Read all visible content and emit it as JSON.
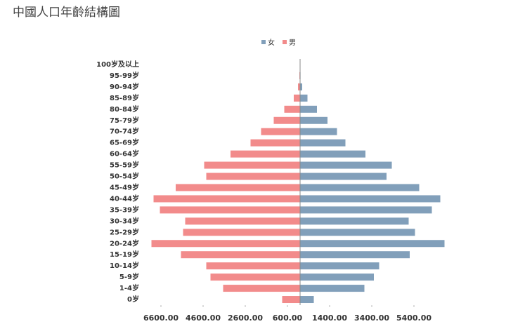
{
  "chart_data": {
    "type": "bar",
    "orientation": "horizontal",
    "title": "中國人口年齡結構圖",
    "categories": [
      "0岁",
      "1-4岁",
      "5-9岁",
      "10-14岁",
      "15-19岁",
      "20-24岁",
      "25-29岁",
      "30-34岁",
      "35-39岁",
      "40-44岁",
      "45-49岁",
      "50-54岁",
      "55-59岁",
      "60-64岁",
      "65-69岁",
      "70-74岁",
      "75-79岁",
      "80-84岁",
      "85-89岁",
      "90-94岁",
      "95-99岁",
      "100岁及以上"
    ],
    "series": [
      {
        "name": "女",
        "color": "#819fba",
        "values": [
          650,
          3050,
          3500,
          3750,
          5200,
          6850,
          5450,
          5150,
          6250,
          6650,
          5650,
          4100,
          4350,
          3100,
          2150,
          1750,
          1300,
          800,
          350,
          100,
          20,
          3
        ]
      },
      {
        "name": "男",
        "color": "#f28b8b",
        "values": [
          -850,
          -3650,
          -4250,
          -4450,
          -5650,
          -7050,
          -5550,
          -5450,
          -6650,
          -6950,
          -5900,
          -4450,
          -4550,
          -3300,
          -2350,
          -1850,
          -1250,
          -750,
          -300,
          -100,
          -30,
          -5
        ]
      }
    ],
    "xlim": [
      -7200,
      7400
    ],
    "xticks": [
      {
        "value": -6600,
        "label": "6600.00"
      },
      {
        "value": -4600,
        "label": "4600.00"
      },
      {
        "value": -2600,
        "label": "2600.00"
      },
      {
        "value": -600,
        "label": "600.00"
      },
      {
        "value": 1400,
        "label": "1400.00"
      },
      {
        "value": 3400,
        "label": "3400.00"
      },
      {
        "value": 5400,
        "label": "5400.00"
      }
    ],
    "legend": "top"
  }
}
